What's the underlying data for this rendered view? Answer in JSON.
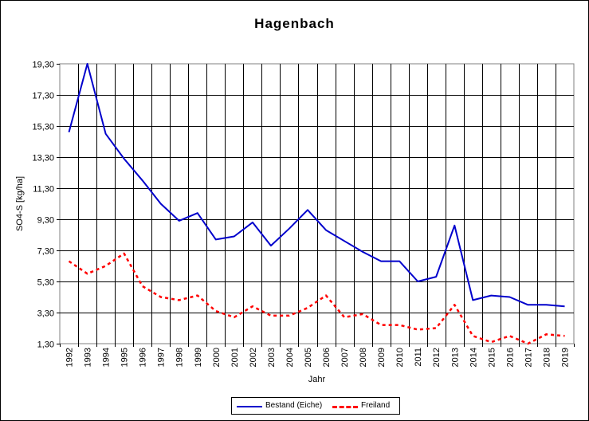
{
  "chart_data": {
    "type": "line",
    "title": "Hagenbach",
    "xlabel": "Jahr",
    "ylabel": "SO4-S [kg/ha]",
    "ylim": [
      1.3,
      19.3
    ],
    "yticks": [
      "1,30",
      "3,30",
      "5,30",
      "7,30",
      "9,30",
      "11,30",
      "13,30",
      "15,30",
      "17,30",
      "19,30"
    ],
    "x": [
      1992,
      1993,
      1994,
      1995,
      1996,
      1997,
      1998,
      1999,
      2000,
      2001,
      2002,
      2003,
      2004,
      2005,
      2006,
      2007,
      2008,
      2009,
      2010,
      2011,
      2012,
      2013,
      2014,
      2015,
      2016,
      2017,
      2018,
      2019
    ],
    "grid": true,
    "legend_position": "bottom",
    "series": [
      {
        "name": "Bestand (Eiche)",
        "color": "#0000cc",
        "style": "solid",
        "values": [
          14.9,
          19.3,
          14.8,
          13.2,
          11.8,
          10.3,
          9.2,
          9.7,
          8.0,
          8.2,
          9.1,
          7.6,
          8.7,
          9.9,
          8.6,
          7.9,
          7.2,
          6.6,
          6.6,
          5.3,
          5.6,
          8.9,
          4.1,
          4.4,
          4.3,
          3.8,
          3.8,
          3.7
        ]
      },
      {
        "name": "Freiland",
        "color": "#ff0000",
        "style": "dashed",
        "values": [
          6.6,
          5.8,
          6.3,
          7.1,
          5.0,
          4.3,
          4.1,
          4.4,
          3.4,
          3.0,
          3.7,
          3.1,
          3.1,
          3.6,
          4.4,
          3.0,
          3.2,
          2.5,
          2.5,
          2.2,
          2.3,
          3.8,
          1.8,
          1.4,
          1.8,
          1.3,
          1.9,
          1.8
        ]
      }
    ]
  }
}
